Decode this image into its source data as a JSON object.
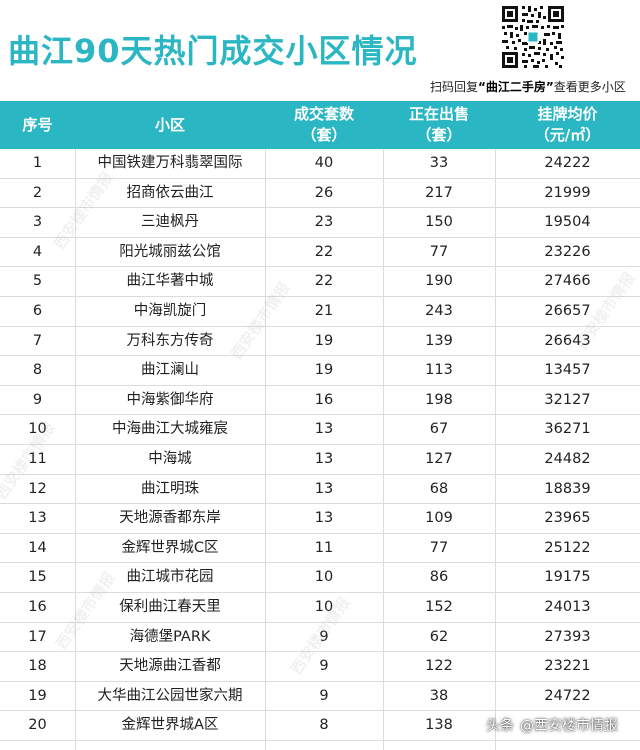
{
  "header": {
    "title": "曲江90天热门成交小区情况",
    "caption_prefix": "扫码回复",
    "caption_keyword": "“曲江二手房”",
    "caption_suffix": "查看更多小区"
  },
  "table": {
    "columns": [
      {
        "line1": "序号",
        "line2": ""
      },
      {
        "line1": "小区",
        "line2": ""
      },
      {
        "line1": "成交套数",
        "line2": "（套）"
      },
      {
        "line1": "正在出售",
        "line2": "（套）"
      },
      {
        "line1": "挂牌均价",
        "line2": "（元/㎡）"
      }
    ],
    "rows": [
      {
        "no": "1",
        "name": "中国铁建万科翡翠国际",
        "deals": "40",
        "selling": "33",
        "price": "24222"
      },
      {
        "no": "2",
        "name": "招商依云曲江",
        "deals": "26",
        "selling": "217",
        "price": "21999"
      },
      {
        "no": "3",
        "name": "三迪枫丹",
        "deals": "23",
        "selling": "150",
        "price": "19504"
      },
      {
        "no": "4",
        "name": "阳光城丽兹公馆",
        "deals": "22",
        "selling": "77",
        "price": "23226"
      },
      {
        "no": "5",
        "name": "曲江华著中城",
        "deals": "22",
        "selling": "190",
        "price": "27466"
      },
      {
        "no": "6",
        "name": "中海凯旋门",
        "deals": "21",
        "selling": "243",
        "price": "26657"
      },
      {
        "no": "7",
        "name": "万科东方传奇",
        "deals": "19",
        "selling": "139",
        "price": "26643"
      },
      {
        "no": "8",
        "name": "曲江澜山",
        "deals": "19",
        "selling": "113",
        "price": "13457"
      },
      {
        "no": "9",
        "name": "中海紫御华府",
        "deals": "16",
        "selling": "198",
        "price": "32127"
      },
      {
        "no": "10",
        "name": "中海曲江大城雍宸",
        "deals": "13",
        "selling": "67",
        "price": "36271"
      },
      {
        "no": "11",
        "name": "中海城",
        "deals": "13",
        "selling": "127",
        "price": "24482"
      },
      {
        "no": "12",
        "name": "曲江明珠",
        "deals": "13",
        "selling": "68",
        "price": "18839"
      },
      {
        "no": "13",
        "name": "天地源香都东岸",
        "deals": "13",
        "selling": "109",
        "price": "23965"
      },
      {
        "no": "14",
        "name": "金辉世界城C区",
        "deals": "11",
        "selling": "77",
        "price": "25122"
      },
      {
        "no": "15",
        "name": "曲江城市花园",
        "deals": "10",
        "selling": "86",
        "price": "19175"
      },
      {
        "no": "16",
        "name": "保利曲江春天里",
        "deals": "10",
        "selling": "152",
        "price": "24013"
      },
      {
        "no": "17",
        "name": "海德堡PARK",
        "deals": "9",
        "selling": "62",
        "price": "27393"
      },
      {
        "no": "18",
        "name": "天地源曲江香都",
        "deals": "9",
        "selling": "122",
        "price": "23221"
      },
      {
        "no": "19",
        "name": "大华曲江公园世家六期",
        "deals": "9",
        "selling": "38",
        "price": "24722"
      },
      {
        "no": "20",
        "name": "金辉世界城A区",
        "deals": "8",
        "selling": "138",
        "price": ""
      }
    ]
  },
  "watermark": {
    "text": "西安楼市情报"
  },
  "source_badge": {
    "platform": "头条",
    "account": "@西安楼市情报"
  },
  "colors": {
    "accent": "#2ab6c3",
    "row_border": "#dcdcdc",
    "text": "#222222"
  }
}
